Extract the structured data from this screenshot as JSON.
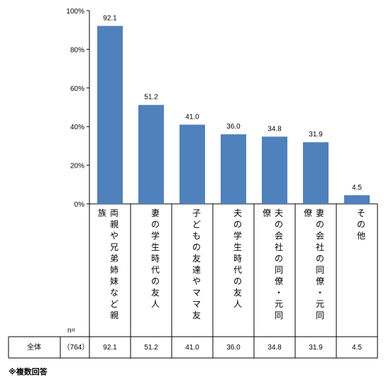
{
  "chart_data": {
    "type": "bar",
    "categories": [
      [
        "両",
        "親",
        "や",
        "兄",
        "弟",
        "姉",
        "妹",
        "な",
        "ど",
        "親",
        "族"
      ],
      [
        "妻",
        "の",
        "学",
        "生",
        "時",
        "代",
        "の",
        "友",
        "人"
      ],
      [
        "子",
        "ど",
        "も",
        "の",
        "友",
        "達",
        "や",
        "マ",
        "マ",
        "友"
      ],
      [
        "夫",
        "の",
        "学",
        "生",
        "時",
        "代",
        "の",
        "友",
        "人"
      ],
      [
        "夫",
        "の",
        "会",
        "社",
        "の",
        "同",
        "僚",
        "・",
        "元",
        "同",
        "僚"
      ],
      [
        "妻",
        "の",
        "会",
        "社",
        "の",
        "同",
        "僚",
        "・",
        "元",
        "同",
        "僚"
      ],
      [
        "そ",
        "の",
        "他"
      ]
    ],
    "values": [
      92.1,
      51.2,
      41.0,
      36.0,
      34.8,
      31.9,
      4.5
    ],
    "value_labels": [
      "92.1",
      "51.2",
      "41.0",
      "36.0",
      "34.8",
      "31.9",
      "4.5"
    ],
    "yticks": [
      "0%",
      "20%",
      "40%",
      "60%",
      "80%",
      "100%"
    ],
    "ylim": [
      0,
      100
    ],
    "bar_color": "#4f81bd",
    "grid": false
  },
  "table": {
    "n_label": "n=",
    "row_label": "全体",
    "n_value": "（764）",
    "values": [
      "92.1",
      "51.2",
      "41.0",
      "36.0",
      "34.8",
      "31.9",
      "4.5"
    ]
  },
  "note": "※複数回答"
}
